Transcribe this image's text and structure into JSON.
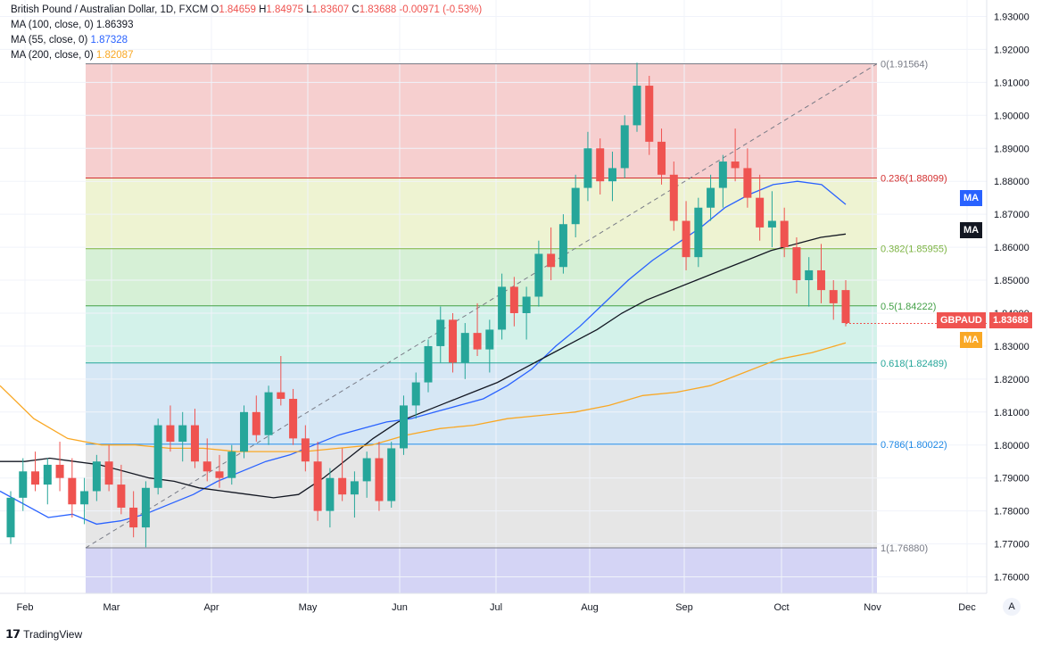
{
  "header": {
    "title": "British Pound / Australian Dollar, 1D, FXCM",
    "ohlc": {
      "o_label": "O",
      "o": "1.84659",
      "h_label": "H",
      "h": "1.84975",
      "l_label": "L",
      "l": "1.83607",
      "c_label": "C",
      "c": "1.83688",
      "change": "-0.00971 (-0.53%)"
    },
    "ma_lines": [
      {
        "label": "MA (100, close, 0)",
        "value": "1.86393",
        "color": "#131722"
      },
      {
        "label": "MA (55, close, 0)",
        "value": "1.87328",
        "color": "#2962ff"
      },
      {
        "label": "MA (200, close, 0)",
        "value": "1.82087",
        "color": "#f9a825"
      }
    ]
  },
  "chart_data": {
    "type": "candlestick",
    "symbol": "GBPAUD",
    "last_price": "1.83688",
    "ylim": [
      1.755,
      1.935
    ],
    "y_ticks": [
      "1.93000",
      "1.92000",
      "1.91000",
      "1.90000",
      "1.89000",
      "1.88000",
      "1.87000",
      "1.86000",
      "1.85000",
      "1.84000",
      "1.83000",
      "1.82000",
      "1.81000",
      "1.80000",
      "1.79000",
      "1.78000",
      "1.77000",
      "1.76000"
    ],
    "x_ticks": [
      "Feb",
      "Mar",
      "Apr",
      "May",
      "Jun",
      "Jul",
      "Aug",
      "Sep",
      "Oct",
      "Nov",
      "Dec"
    ],
    "fib_levels": [
      {
        "label": "0(1.91564)",
        "value": 1.91564,
        "color": "#787b86",
        "fill": "#f6cfcf"
      },
      {
        "label": "0.236(1.88099)",
        "value": 1.88099,
        "color": "#d32f2f",
        "fill": "#eef3d2"
      },
      {
        "label": "0.382(1.85955)",
        "value": 1.85955,
        "color": "#7cb342",
        "fill": "#d6f0d6"
      },
      {
        "label": "0.5(1.84222)",
        "value": 1.84222,
        "color": "#43a047",
        "fill": "#d3f2ea"
      },
      {
        "label": "0.618(1.82489)",
        "value": 1.82489,
        "color": "#26a69a",
        "fill": "#d6e7f5"
      },
      {
        "label": "0.786(1.80022)",
        "value": 1.80022,
        "color": "#1e88e5",
        "fill": "#e6e6e6"
      },
      {
        "label": "1(1.76880)",
        "value": 1.7688,
        "color": "#787b86",
        "fill": "#d4d4f5"
      }
    ],
    "fib_trend": {
      "from": 1.7688,
      "to": 1.91564
    },
    "moving_averages": [
      {
        "name": "MA 55",
        "color": "#2962ff",
        "values": [
          1.786,
          1.782,
          1.778,
          1.779,
          1.776,
          1.777,
          1.779,
          1.782,
          1.785,
          1.789,
          1.792,
          1.795,
          1.797,
          1.8,
          1.803,
          1.805,
          1.807,
          1.808,
          1.81,
          1.812,
          1.814,
          1.818,
          1.823,
          1.83,
          1.836,
          1.843,
          1.85,
          1.856,
          1.861,
          1.866,
          1.872,
          1.876,
          1.879,
          1.88,
          1.879,
          1.873
        ]
      },
      {
        "name": "MA 100",
        "color": "#131722",
        "values": [
          1.795,
          1.795,
          1.796,
          1.795,
          1.794,
          1.792,
          1.79,
          1.789,
          1.787,
          1.786,
          1.785,
          1.784,
          1.785,
          1.79,
          1.796,
          1.802,
          1.807,
          1.81,
          1.813,
          1.816,
          1.819,
          1.823,
          1.827,
          1.831,
          1.835,
          1.84,
          1.844,
          1.847,
          1.85,
          1.853,
          1.856,
          1.859,
          1.861,
          1.863,
          1.864
        ]
      },
      {
        "name": "MA 200",
        "color": "#f9a825",
        "values": [
          1.818,
          1.808,
          1.802,
          1.8,
          1.8,
          1.799,
          1.799,
          1.798,
          1.798,
          1.798,
          1.799,
          1.8,
          1.803,
          1.805,
          1.806,
          1.808,
          1.809,
          1.81,
          1.812,
          1.815,
          1.816,
          1.818,
          1.822,
          1.826,
          1.828,
          1.831
        ]
      },
      {
        "label": "MA",
        "color": "#2962ff"
      },
      {
        "label": "MA",
        "color": "#131722"
      },
      {
        "label": "MA",
        "color": "#f9a825"
      }
    ],
    "candles": [
      [
        1.772,
        1.786,
        1.77,
        1.784
      ],
      [
        1.784,
        1.796,
        1.78,
        1.792
      ],
      [
        1.792,
        1.798,
        1.786,
        1.788
      ],
      [
        1.788,
        1.796,
        1.782,
        1.794
      ],
      [
        1.794,
        1.801,
        1.786,
        1.79
      ],
      [
        1.79,
        1.796,
        1.778,
        1.782
      ],
      [
        1.782,
        1.79,
        1.776,
        1.786
      ],
      [
        1.786,
        1.797,
        1.783,
        1.795
      ],
      [
        1.795,
        1.8,
        1.786,
        1.788
      ],
      [
        1.788,
        1.794,
        1.779,
        1.781
      ],
      [
        1.781,
        1.786,
        1.772,
        1.775
      ],
      [
        1.775,
        1.789,
        1.769,
        1.787
      ],
      [
        1.787,
        1.808,
        1.785,
        1.806
      ],
      [
        1.806,
        1.812,
        1.798,
        1.801
      ],
      [
        1.801,
        1.81,
        1.795,
        1.806
      ],
      [
        1.806,
        1.811,
        1.793,
        1.795
      ],
      [
        1.795,
        1.802,
        1.789,
        1.792
      ],
      [
        1.792,
        1.797,
        1.787,
        1.79
      ],
      [
        1.79,
        1.8,
        1.788,
        1.798
      ],
      [
        1.798,
        1.812,
        1.796,
        1.81
      ],
      [
        1.81,
        1.815,
        1.801,
        1.803
      ],
      [
        1.803,
        1.818,
        1.8,
        1.816
      ],
      [
        1.816,
        1.827,
        1.812,
        1.814
      ],
      [
        1.814,
        1.817,
        1.8,
        1.802
      ],
      [
        1.802,
        1.806,
        1.792,
        1.795
      ],
      [
        1.795,
        1.801,
        1.777,
        1.78
      ],
      [
        1.78,
        1.793,
        1.775,
        1.79
      ],
      [
        1.79,
        1.799,
        1.783,
        1.785
      ],
      [
        1.785,
        1.792,
        1.778,
        1.789
      ],
      [
        1.789,
        1.798,
        1.784,
        1.796
      ],
      [
        1.796,
        1.801,
        1.78,
        1.783
      ],
      [
        1.783,
        1.801,
        1.781,
        1.799
      ],
      [
        1.799,
        1.815,
        1.797,
        1.812
      ],
      [
        1.812,
        1.822,
        1.808,
        1.819
      ],
      [
        1.819,
        1.832,
        1.816,
        1.83
      ],
      [
        1.83,
        1.842,
        1.825,
        1.838
      ],
      [
        1.838,
        1.84,
        1.822,
        1.825
      ],
      [
        1.825,
        1.837,
        1.82,
        1.834
      ],
      [
        1.834,
        1.843,
        1.827,
        1.829
      ],
      [
        1.829,
        1.838,
        1.822,
        1.835
      ],
      [
        1.835,
        1.852,
        1.832,
        1.848
      ],
      [
        1.848,
        1.851,
        1.836,
        1.84
      ],
      [
        1.84,
        1.848,
        1.832,
        1.845
      ],
      [
        1.845,
        1.862,
        1.842,
        1.858
      ],
      [
        1.858,
        1.866,
        1.85,
        1.854
      ],
      [
        1.854,
        1.87,
        1.852,
        1.867
      ],
      [
        1.867,
        1.882,
        1.863,
        1.878
      ],
      [
        1.878,
        1.895,
        1.874,
        1.89
      ],
      [
        1.89,
        1.893,
        1.876,
        1.88
      ],
      [
        1.88,
        1.889,
        1.874,
        1.884
      ],
      [
        1.884,
        1.9,
        1.881,
        1.897
      ],
      [
        1.897,
        1.916,
        1.895,
        1.909
      ],
      [
        1.909,
        1.912,
        1.888,
        1.892
      ],
      [
        1.892,
        1.896,
        1.879,
        1.882
      ],
      [
        1.882,
        1.886,
        1.865,
        1.868
      ],
      [
        1.868,
        1.874,
        1.853,
        1.857
      ],
      [
        1.857,
        1.875,
        1.854,
        1.872
      ],
      [
        1.872,
        1.882,
        1.868,
        1.878
      ],
      [
        1.878,
        1.888,
        1.872,
        1.886
      ],
      [
        1.886,
        1.896,
        1.88,
        1.884
      ],
      [
        1.884,
        1.89,
        1.872,
        1.875
      ],
      [
        1.875,
        1.882,
        1.862,
        1.866
      ],
      [
        1.866,
        1.877,
        1.86,
        1.868
      ],
      [
        1.868,
        1.872,
        1.857,
        1.86
      ],
      [
        1.86,
        1.863,
        1.846,
        1.85
      ],
      [
        1.85,
        1.857,
        1.842,
        1.853
      ],
      [
        1.853,
        1.861,
        1.843,
        1.847
      ],
      [
        1.847,
        1.85,
        1.838,
        1.843
      ],
      [
        1.847,
        1.85,
        1.836,
        1.837
      ]
    ]
  },
  "tags": {
    "ma55": "MA",
    "ma100": "MA",
    "ma200": "MA",
    "symbol": "GBPAUD",
    "price": "1.83688"
  },
  "footer": {
    "brand": "TradingView",
    "auto": "A"
  }
}
